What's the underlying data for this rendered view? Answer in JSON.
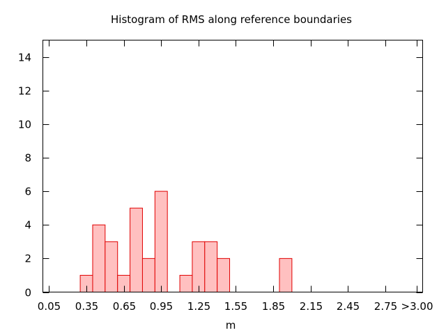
{
  "chart_data": {
    "type": "bar",
    "title": "Histogram of RMS along reference boundaries",
    "xlabel": "m",
    "ylabel": "",
    "bin_width": 0.1,
    "xlim": [
      0.0,
      3.05
    ],
    "ylim": [
      0,
      15
    ],
    "x_ticks": [
      {
        "value": 0.05,
        "label": "0.05"
      },
      {
        "value": 0.35,
        "label": "0.35"
      },
      {
        "value": 0.65,
        "label": "0.65"
      },
      {
        "value": 0.95,
        "label": "0.95"
      },
      {
        "value": 1.25,
        "label": "1.25"
      },
      {
        "value": 1.55,
        "label": "1.55"
      },
      {
        "value": 1.85,
        "label": "1.85"
      },
      {
        "value": 2.15,
        "label": "2.15"
      },
      {
        "value": 2.45,
        "label": "2.45"
      },
      {
        "value": 2.75,
        "label": "2.75"
      },
      {
        "value": 3.0,
        "label": ">3.00"
      }
    ],
    "y_ticks": [
      0,
      2,
      4,
      6,
      8,
      10,
      12,
      14
    ],
    "bins": [
      {
        "x": 0.35,
        "count": 1
      },
      {
        "x": 0.45,
        "count": 4
      },
      {
        "x": 0.55,
        "count": 3
      },
      {
        "x": 0.65,
        "count": 1
      },
      {
        "x": 0.75,
        "count": 5
      },
      {
        "x": 0.85,
        "count": 2
      },
      {
        "x": 0.95,
        "count": 6
      },
      {
        "x": 1.15,
        "count": 1
      },
      {
        "x": 1.25,
        "count": 3
      },
      {
        "x": 1.35,
        "count": 3
      },
      {
        "x": 1.45,
        "count": 2
      },
      {
        "x": 1.95,
        "count": 2
      }
    ],
    "bar_fill": "#ffc0c0",
    "bar_stroke": "#e00000",
    "grid": false
  }
}
